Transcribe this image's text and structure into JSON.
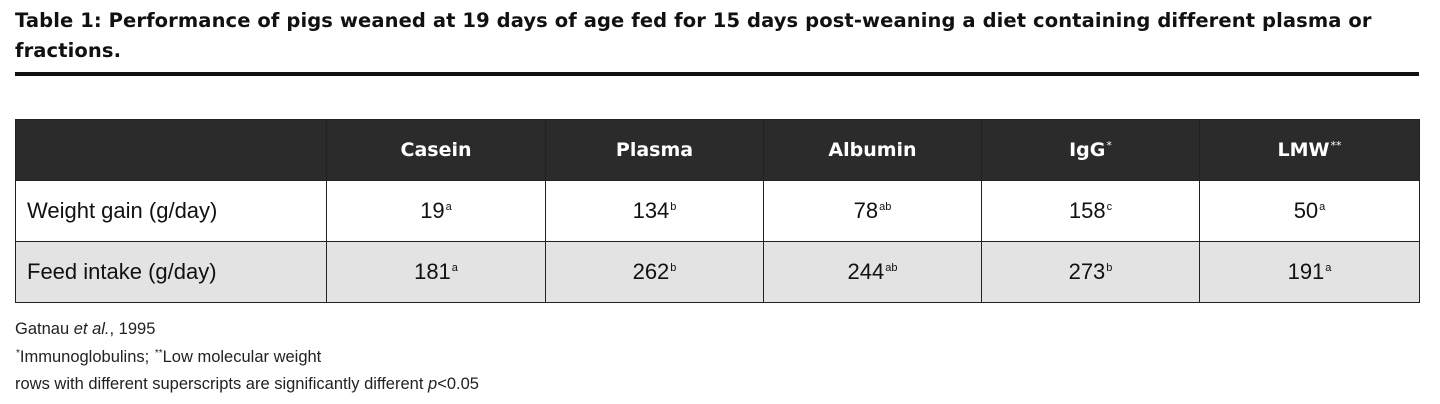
{
  "title": "Table 1: Performance of pigs weaned at 19 days of age fed for 15 days post-weaning a diet containing different plasma or fractions.",
  "table": {
    "columns": [
      {
        "label": "",
        "mark": ""
      },
      {
        "label": "Casein",
        "mark": ""
      },
      {
        "label": "Plasma",
        "mark": ""
      },
      {
        "label": "Albumin",
        "mark": ""
      },
      {
        "label": "IgG",
        "mark": "*"
      },
      {
        "label": "LMW",
        "mark": "**"
      }
    ],
    "rows": [
      {
        "label": "Weight gain (g/day)",
        "cells": [
          {
            "value": "19",
            "sup": "a"
          },
          {
            "value": "134",
            "sup": "b"
          },
          {
            "value": "78",
            "sup": "ab"
          },
          {
            "value": "158",
            "sup": "c"
          },
          {
            "value": "50",
            "sup": "a"
          }
        ]
      },
      {
        "label": "Feed intake (g/day)",
        "cells": [
          {
            "value": "181",
            "sup": "a"
          },
          {
            "value": "262",
            "sup": "b"
          },
          {
            "value": "244",
            "sup": "ab"
          },
          {
            "value": "273",
            "sup": "b"
          },
          {
            "value": "191",
            "sup": "a"
          }
        ]
      }
    ]
  },
  "notes": {
    "source_author": "Gatnau ",
    "source_etal": "et al.",
    "source_year": ", 1995",
    "footnote_mark_1": "*",
    "footnote_text_1": "Immunoglobulins; ",
    "footnote_mark_2": "**",
    "footnote_text_2": "Low molecular weight",
    "significance_text": "rows with different superscripts are significantly different ",
    "significance_p": "p",
    "significance_value": "<0.05"
  }
}
